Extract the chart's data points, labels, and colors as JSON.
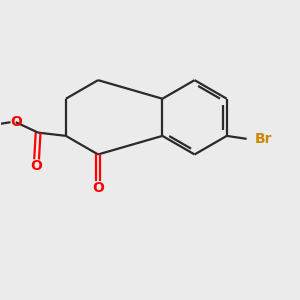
{
  "background_color": "#ebebeb",
  "bond_color": "#2a2a2a",
  "oxygen_color": "#ff0000",
  "bromine_color": "#cc8800",
  "line_width": 1.6,
  "figsize": [
    3.0,
    3.0
  ],
  "dpi": 100,
  "xlim": [
    0,
    10
  ],
  "ylim": [
    0,
    10
  ]
}
